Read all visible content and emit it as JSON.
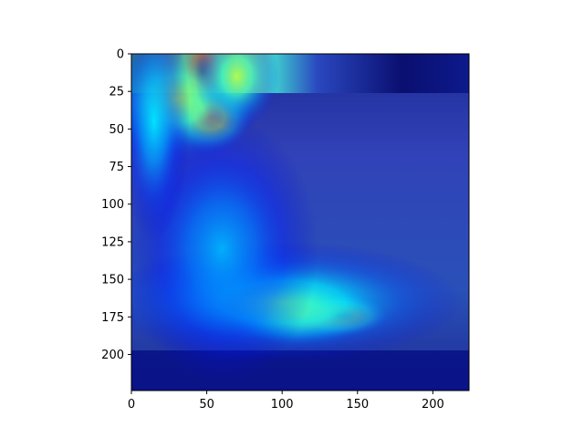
{
  "chart_data": {
    "type": "heatmap",
    "title": "",
    "xlabel": "",
    "ylabel": "",
    "xlim": [
      0,
      224
    ],
    "ylim": [
      224,
      0
    ],
    "x_ticks": [
      0,
      50,
      100,
      150,
      200
    ],
    "y_ticks": [
      0,
      25,
      50,
      75,
      100,
      125,
      150,
      175,
      200
    ],
    "x_tick_labels": [
      "0",
      "50",
      "100",
      "150",
      "200"
    ],
    "y_tick_labels": [
      "0",
      "25",
      "50",
      "75",
      "100",
      "125",
      "150",
      "175",
      "200"
    ],
    "colormap": "jet",
    "grid": false,
    "image_content": "saliency heatmap overlaid on photo",
    "heat_regions": [
      {
        "x": 47,
        "y": 12,
        "sx": 11,
        "sy": 16,
        "intensity": 1.0
      },
      {
        "x": 52,
        "y": 42,
        "sx": 14,
        "sy": 12,
        "intensity": 0.85
      },
      {
        "x": 30,
        "y": 30,
        "sx": 28,
        "sy": 22,
        "intensity": 0.55
      },
      {
        "x": 70,
        "y": 15,
        "sx": 14,
        "sy": 18,
        "intensity": 0.55
      },
      {
        "x": 138,
        "y": 174,
        "sx": 16,
        "sy": 7,
        "intensity": 0.95
      },
      {
        "x": 112,
        "y": 173,
        "sx": 26,
        "sy": 11,
        "intensity": 0.65
      },
      {
        "x": 100,
        "y": 165,
        "sx": 60,
        "sy": 20,
        "intensity": 0.45
      },
      {
        "x": 60,
        "y": 130,
        "sx": 32,
        "sy": 45,
        "intensity": 0.3
      },
      {
        "x": 15,
        "y": 45,
        "sx": 12,
        "sy": 40,
        "intensity": 0.35
      }
    ]
  }
}
